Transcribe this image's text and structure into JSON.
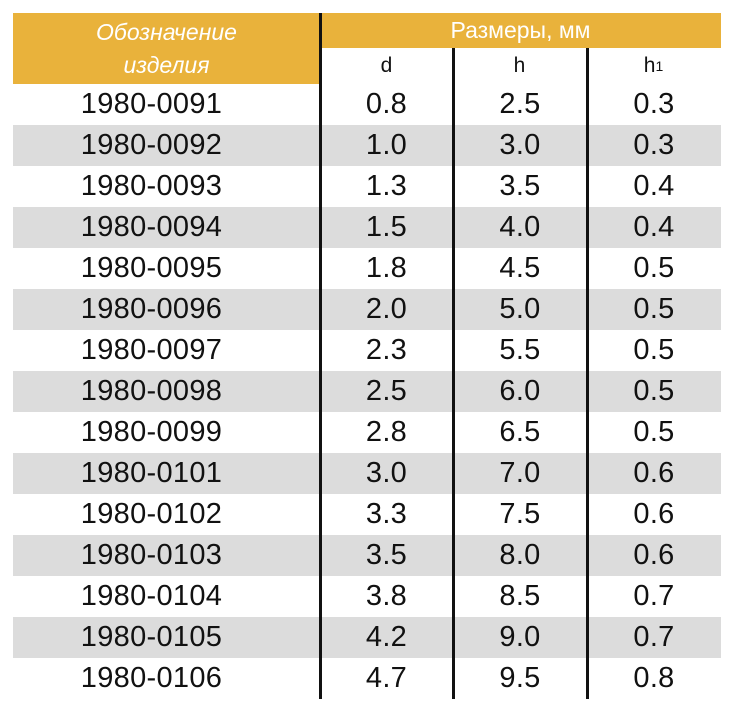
{
  "header": {
    "designation_line1": "Обозначение",
    "designation_line2": "изделия",
    "dimensions": "Размеры, мм",
    "col_d": "d",
    "col_h": "h",
    "col_h1_base": "h",
    "col_h1_sub": "1"
  },
  "rows": [
    {
      "code": "1980-0091",
      "d": "0.8",
      "h": "2.5",
      "h1": "0.3"
    },
    {
      "code": "1980-0092",
      "d": "1.0",
      "h": "3.0",
      "h1": "0.3"
    },
    {
      "code": "1980-0093",
      "d": "1.3",
      "h": "3.5",
      "h1": "0.4"
    },
    {
      "code": "1980-0094",
      "d": "1.5",
      "h": "4.0",
      "h1": "0.4"
    },
    {
      "code": "1980-0095",
      "d": "1.8",
      "h": "4.5",
      "h1": "0.5"
    },
    {
      "code": "1980-0096",
      "d": "2.0",
      "h": "5.0",
      "h1": "0.5"
    },
    {
      "code": "1980-0097",
      "d": "2.3",
      "h": "5.5",
      "h1": "0.5"
    },
    {
      "code": "1980-0098",
      "d": "2.5",
      "h": "6.0",
      "h1": "0.5"
    },
    {
      "code": "1980-0099",
      "d": "2.8",
      "h": "6.5",
      "h1": "0.5"
    },
    {
      "code": "1980-0101",
      "d": "3.0",
      "h": "7.0",
      "h1": "0.6"
    },
    {
      "code": "1980-0102",
      "d": "3.3",
      "h": "7.5",
      "h1": "0.6"
    },
    {
      "code": "1980-0103",
      "d": "3.5",
      "h": "8.0",
      "h1": "0.6"
    },
    {
      "code": "1980-0104",
      "d": "3.8",
      "h": "8.5",
      "h1": "0.7"
    },
    {
      "code": "1980-0105",
      "d": "4.2",
      "h": "9.0",
      "h1": "0.7"
    },
    {
      "code": "1980-0106",
      "d": "4.7",
      "h": "9.5",
      "h1": "0.8"
    }
  ],
  "colors": {
    "header_bg": "#e9b23b",
    "header_text": "#ffffff",
    "row_shade": "#dcdcdc",
    "rule": "#111111"
  }
}
